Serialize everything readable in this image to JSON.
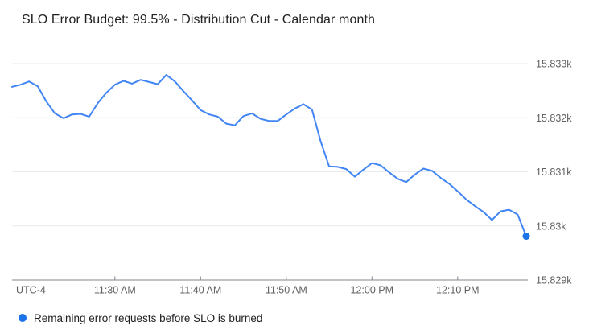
{
  "title": "SLO Error Budget: 99.5% - Distribution Cut - Calendar month",
  "colors": {
    "line": "#4285f4",
    "endpoint": "#1a73e8",
    "legend_dot": "#1a73e8",
    "gridline": "#e8eaed",
    "axis": "#80868b",
    "axis_label": "#616161",
    "title_text": "#212121",
    "legend_text": "#202124"
  },
  "legend": {
    "label": "Remaining error requests before SLO is burned"
  },
  "chart_data": {
    "type": "line",
    "title": "SLO Error Budget: 99.5% - Distribution Cut - Calendar month",
    "grid": "horizontal-only",
    "legend_position": "bottom-left",
    "last_point_marker": true,
    "y_axis": {
      "side": "right",
      "tick_labels": [
        "15.833k",
        "15.832k",
        "15.831k",
        "15.83k",
        "15.829k"
      ],
      "tick_values": [
        15833,
        15832,
        15831,
        15830,
        15829
      ],
      "baseline_value": 15829,
      "range": [
        15829,
        15833
      ]
    },
    "x_axis": {
      "timezone_label": "UTC-4",
      "tick_labels": [
        "11:30 AM",
        "11:40 AM",
        "11:50 AM",
        "12:00 PM",
        "12:10 PM"
      ],
      "range": [
        "11:18 AM",
        "12:18 PM"
      ]
    },
    "series": [
      {
        "name": "Remaining error requests before SLO is burned",
        "color": "#4285f4",
        "points": [
          {
            "t": "11:18 AM",
            "v": 15832.57
          },
          {
            "t": "11:19 AM",
            "v": 15832.61
          },
          {
            "t": "11:20 AM",
            "v": 15832.67
          },
          {
            "t": "11:21 AM",
            "v": 15832.58
          },
          {
            "t": "11:22 AM",
            "v": 15832.3
          },
          {
            "t": "11:23 AM",
            "v": 15832.08
          },
          {
            "t": "11:24 AM",
            "v": 15831.99
          },
          {
            "t": "11:25 AM",
            "v": 15832.06
          },
          {
            "t": "11:26 AM",
            "v": 15832.07
          },
          {
            "t": "11:27 AM",
            "v": 15832.02
          },
          {
            "t": "11:28 AM",
            "v": 15832.27
          },
          {
            "t": "11:29 AM",
            "v": 15832.46
          },
          {
            "t": "11:30 AM",
            "v": 15832.61
          },
          {
            "t": "11:31 AM",
            "v": 15832.68
          },
          {
            "t": "11:32 AM",
            "v": 15832.63
          },
          {
            "t": "11:33 AM",
            "v": 15832.7
          },
          {
            "t": "11:34 AM",
            "v": 15832.66
          },
          {
            "t": "11:35 AM",
            "v": 15832.62
          },
          {
            "t": "11:36 AM",
            "v": 15832.79
          },
          {
            "t": "11:37 AM",
            "v": 15832.67
          },
          {
            "t": "11:38 AM",
            "v": 15832.49
          },
          {
            "t": "11:39 AM",
            "v": 15832.32
          },
          {
            "t": "11:40 AM",
            "v": 15832.14
          },
          {
            "t": "11:41 AM",
            "v": 15832.06
          },
          {
            "t": "11:42 AM",
            "v": 15832.02
          },
          {
            "t": "11:43 AM",
            "v": 15831.89
          },
          {
            "t": "11:44 AM",
            "v": 15831.86
          },
          {
            "t": "11:45 AM",
            "v": 15832.03
          },
          {
            "t": "11:46 AM",
            "v": 15832.08
          },
          {
            "t": "11:47 AM",
            "v": 15831.98
          },
          {
            "t": "11:48 AM",
            "v": 15831.94
          },
          {
            "t": "11:49 AM",
            "v": 15831.94
          },
          {
            "t": "11:50 AM",
            "v": 15832.06
          },
          {
            "t": "11:51 AM",
            "v": 15832.17
          },
          {
            "t": "11:52 AM",
            "v": 15832.25
          },
          {
            "t": "11:53 AM",
            "v": 15832.15
          },
          {
            "t": "11:54 AM",
            "v": 15831.57
          },
          {
            "t": "11:55 AM",
            "v": 15831.1
          },
          {
            "t": "11:56 AM",
            "v": 15831.09
          },
          {
            "t": "11:57 AM",
            "v": 15831.05
          },
          {
            "t": "11:58 AM",
            "v": 15830.91
          },
          {
            "t": "11:59 AM",
            "v": 15831.04
          },
          {
            "t": "12:00 PM",
            "v": 15831.16
          },
          {
            "t": "12:01 PM",
            "v": 15831.12
          },
          {
            "t": "12:02 PM",
            "v": 15830.99
          },
          {
            "t": "12:03 PM",
            "v": 15830.87
          },
          {
            "t": "12:04 PM",
            "v": 15830.81
          },
          {
            "t": "12:05 PM",
            "v": 15830.95
          },
          {
            "t": "12:06 PM",
            "v": 15831.06
          },
          {
            "t": "12:07 PM",
            "v": 15831.02
          },
          {
            "t": "12:08 PM",
            "v": 15830.89
          },
          {
            "t": "12:09 PM",
            "v": 15830.78
          },
          {
            "t": "12:10 PM",
            "v": 15830.64
          },
          {
            "t": "12:11 PM",
            "v": 15830.49
          },
          {
            "t": "12:12 PM",
            "v": 15830.37
          },
          {
            "t": "12:13 PM",
            "v": 15830.26
          },
          {
            "t": "12:14 PM",
            "v": 15830.11
          },
          {
            "t": "12:15 PM",
            "v": 15830.27
          },
          {
            "t": "12:16 PM",
            "v": 15830.3
          },
          {
            "t": "12:17 PM",
            "v": 15830.21
          },
          {
            "t": "12:18 PM",
            "v": 15829.81
          }
        ]
      }
    ]
  }
}
